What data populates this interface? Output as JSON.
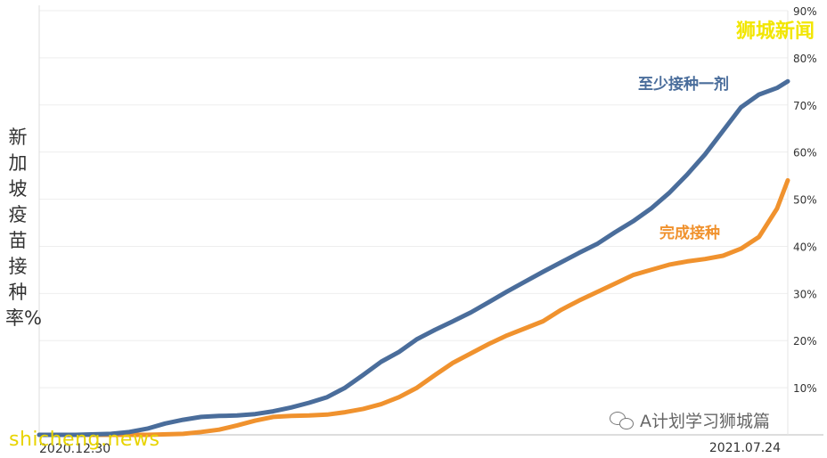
{
  "chart_data": {
    "type": "line",
    "ylabel": "新加坡疫苗接种率%",
    "ylim": [
      0,
      90
    ],
    "y_ticks": [
      "10%",
      "20%",
      "30%",
      "40%",
      "50%",
      "60%",
      "70%",
      "80%",
      "90%"
    ],
    "x_tick_labels": [
      "2020.12.30",
      "2021.07.24"
    ],
    "grid": true,
    "series": [
      {
        "name": "至少接种一剂",
        "color": "#4a6d9b",
        "points": [
          {
            "x": 0,
            "y": 0.0
          },
          {
            "x": 10,
            "y": 0.0
          },
          {
            "x": 20,
            "y": 0.2
          },
          {
            "x": 25,
            "y": 0.6
          },
          {
            "x": 30,
            "y": 1.3
          },
          {
            "x": 35,
            "y": 2.4
          },
          {
            "x": 40,
            "y": 3.2
          },
          {
            "x": 45,
            "y": 3.8
          },
          {
            "x": 50,
            "y": 4.0
          },
          {
            "x": 55,
            "y": 4.1
          },
          {
            "x": 60,
            "y": 4.4
          },
          {
            "x": 65,
            "y": 5.0
          },
          {
            "x": 70,
            "y": 5.8
          },
          {
            "x": 75,
            "y": 6.8
          },
          {
            "x": 80,
            "y": 8.0
          },
          {
            "x": 85,
            "y": 10.0
          },
          {
            "x": 90,
            "y": 12.7
          },
          {
            "x": 95,
            "y": 15.5
          },
          {
            "x": 100,
            "y": 17.6
          },
          {
            "x": 105,
            "y": 20.3
          },
          {
            "x": 110,
            "y": 22.3
          },
          {
            "x": 115,
            "y": 24.1
          },
          {
            "x": 120,
            "y": 26.0
          },
          {
            "x": 125,
            "y": 28.2
          },
          {
            "x": 130,
            "y": 30.4
          },
          {
            "x": 135,
            "y": 32.5
          },
          {
            "x": 140,
            "y": 34.6
          },
          {
            "x": 145,
            "y": 36.6
          },
          {
            "x": 150,
            "y": 38.6
          },
          {
            "x": 155,
            "y": 40.5
          },
          {
            "x": 160,
            "y": 43.0
          },
          {
            "x": 165,
            "y": 45.3
          },
          {
            "x": 170,
            "y": 48.0
          },
          {
            "x": 175,
            "y": 51.3
          },
          {
            "x": 180,
            "y": 55.2
          },
          {
            "x": 185,
            "y": 59.5
          },
          {
            "x": 190,
            "y": 64.5
          },
          {
            "x": 195,
            "y": 69.5
          },
          {
            "x": 200,
            "y": 72.2
          },
          {
            "x": 205,
            "y": 73.6
          },
          {
            "x": 208,
            "y": 75.0
          }
        ]
      },
      {
        "name": "完成接种",
        "color": "#f0922e",
        "points": [
          {
            "x": 0,
            "y": 0.0
          },
          {
            "x": 30,
            "y": 0.0
          },
          {
            "x": 40,
            "y": 0.2
          },
          {
            "x": 45,
            "y": 0.6
          },
          {
            "x": 50,
            "y": 1.1
          },
          {
            "x": 55,
            "y": 2.0
          },
          {
            "x": 60,
            "y": 3.0
          },
          {
            "x": 65,
            "y": 3.8
          },
          {
            "x": 70,
            "y": 4.0
          },
          {
            "x": 75,
            "y": 4.1
          },
          {
            "x": 80,
            "y": 4.3
          },
          {
            "x": 85,
            "y": 4.8
          },
          {
            "x": 90,
            "y": 5.5
          },
          {
            "x": 95,
            "y": 6.5
          },
          {
            "x": 100,
            "y": 8.0
          },
          {
            "x": 105,
            "y": 10.0
          },
          {
            "x": 110,
            "y": 12.7
          },
          {
            "x": 115,
            "y": 15.3
          },
          {
            "x": 120,
            "y": 17.3
          },
          {
            "x": 125,
            "y": 19.3
          },
          {
            "x": 130,
            "y": 21.1
          },
          {
            "x": 135,
            "y": 22.6
          },
          {
            "x": 140,
            "y": 24.1
          },
          {
            "x": 145,
            "y": 26.5
          },
          {
            "x": 150,
            "y": 28.5
          },
          {
            "x": 155,
            "y": 30.3
          },
          {
            "x": 160,
            "y": 32.1
          },
          {
            "x": 165,
            "y": 33.9
          },
          {
            "x": 170,
            "y": 35.0
          },
          {
            "x": 175,
            "y": 36.1
          },
          {
            "x": 180,
            "y": 36.8
          },
          {
            "x": 185,
            "y": 37.3
          },
          {
            "x": 190,
            "y": 38.0
          },
          {
            "x": 195,
            "y": 39.5
          },
          {
            "x": 200,
            "y": 42.0
          },
          {
            "x": 205,
            "y": 48.0
          },
          {
            "x": 208,
            "y": 54.0
          }
        ]
      }
    ]
  },
  "brand": "狮城新闻",
  "watermark_left": "shicheng.news",
  "watermark_right": "A计划学习狮城篇"
}
